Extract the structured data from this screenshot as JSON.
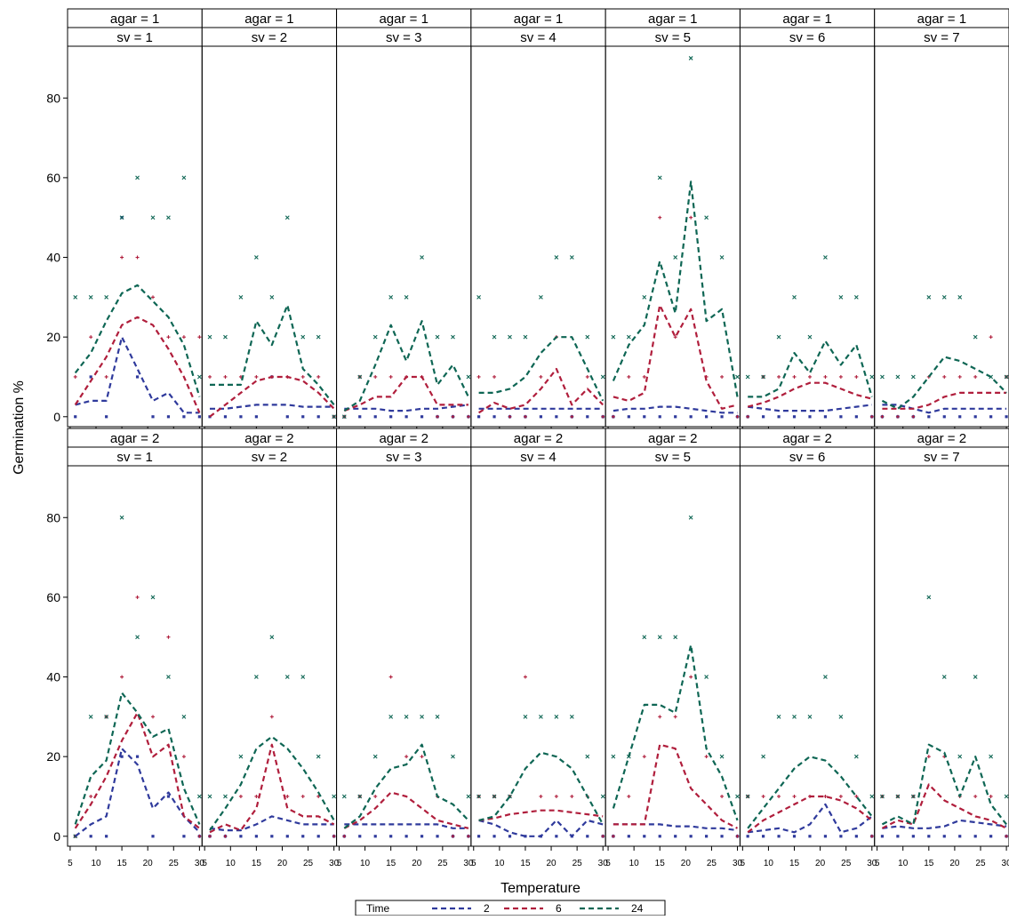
{
  "chart_data": {
    "type": "line",
    "xlabel": "Temperature",
    "ylabel": "Germination %",
    "x_ticks": [
      5,
      10,
      15,
      20,
      25,
      30
    ],
    "y_ticks": [
      0,
      20,
      40,
      60,
      80
    ],
    "xlim": [
      4.5,
      30.5
    ],
    "ylim": [
      -2.5,
      93
    ],
    "grid": false,
    "legend": {
      "title": "Time",
      "position": "bottom-center",
      "entries": [
        {
          "label": "2",
          "color": "#2f3a9c"
        },
        {
          "label": "6",
          "color": "#b01e3c"
        },
        {
          "label": "24",
          "color": "#0e6654"
        }
      ]
    },
    "x": [
      6,
      9,
      12,
      15,
      18,
      21,
      24,
      27,
      30
    ],
    "panels": [
      {
        "agar": "agar = 1",
        "sv": "sv = 1",
        "lines": {
          "2": [
            3,
            4,
            4,
            20,
            12,
            4,
            6,
            1,
            1
          ],
          "6": [
            3,
            9,
            15,
            23,
            25,
            23,
            17,
            10,
            1
          ],
          "24": [
            11,
            16,
            24,
            31,
            33,
            29,
            25,
            18,
            5
          ]
        },
        "points": {
          "2": [
            0,
            10,
            0,
            50,
            10,
            0,
            0,
            0,
            0
          ],
          "6": [
            10,
            20,
            10,
            40,
            40,
            30,
            20,
            20,
            20
          ],
          "24": [
            30,
            30,
            30,
            50,
            60,
            50,
            50,
            60,
            10
          ]
        }
      },
      {
        "agar": "agar = 1",
        "sv": "sv = 2",
        "lines": {
          "2": [
            2,
            2,
            2.5,
            3,
            3,
            3,
            2.5,
            2.5,
            2.5
          ],
          "6": [
            0,
            3,
            6,
            9,
            10,
            10,
            9,
            6,
            2
          ],
          "24": [
            8,
            8,
            8,
            24,
            18,
            28,
            12,
            8,
            3
          ]
        },
        "points": {
          "2": [
            0,
            0,
            0,
            0,
            10,
            0,
            0,
            0,
            0
          ],
          "6": [
            10,
            10,
            10,
            10,
            10,
            10,
            10,
            10,
            0
          ],
          "24": [
            20,
            20,
            30,
            40,
            30,
            50,
            20,
            20,
            0
          ]
        }
      },
      {
        "agar": "agar = 1",
        "sv": "sv = 3",
        "lines": {
          "2": [
            2,
            2,
            2,
            1.5,
            1.5,
            2,
            2,
            2.5,
            3
          ],
          "6": [
            1.5,
            3,
            5,
            5,
            10,
            10,
            3,
            3,
            3
          ],
          "24": [
            1.5,
            4,
            13,
            23,
            14,
            24,
            8,
            13,
            5
          ]
        },
        "points": {
          "2": [
            0,
            0,
            0,
            0,
            0,
            0,
            0,
            0,
            0
          ],
          "6": [
            0,
            10,
            10,
            10,
            10,
            10,
            0,
            0,
            0
          ],
          "24": [
            0,
            10,
            20,
            30,
            30,
            40,
            20,
            20,
            10
          ]
        }
      },
      {
        "agar": "agar = 1",
        "sv": "sv = 4",
        "lines": {
          "2": [
            2,
            2,
            2,
            2,
            2,
            2,
            2,
            2,
            2
          ],
          "6": [
            1,
            3.5,
            2,
            3,
            7,
            12,
            3,
            7,
            3
          ],
          "24": [
            6,
            6,
            7,
            10,
            16,
            20,
            20,
            12,
            4
          ]
        },
        "points": {
          "2": [
            0,
            0,
            0,
            0,
            0,
            0,
            0,
            0,
            0
          ],
          "6": [
            10,
            10,
            0,
            0,
            10,
            20,
            0,
            10,
            0
          ],
          "24": [
            30,
            20,
            20,
            20,
            30,
            40,
            40,
            20,
            10
          ]
        }
      },
      {
        "agar": "agar = 1",
        "sv": "sv = 5",
        "lines": {
          "2": [
            1.5,
            2,
            2,
            2.5,
            2.5,
            2,
            1.5,
            1,
            1
          ],
          "6": [
            5,
            4,
            6,
            28,
            20,
            27,
            9,
            2,
            3
          ],
          "24": [
            9,
            18,
            23,
            39,
            26,
            59,
            24,
            27,
            5
          ]
        },
        "points": {
          "2": [
            0,
            0,
            0,
            0,
            0,
            0,
            0,
            0,
            0
          ],
          "6": [
            0,
            10,
            10,
            50,
            20,
            50,
            10,
            10,
            0
          ],
          "24": [
            20,
            20,
            30,
            60,
            40,
            90,
            50,
            40,
            10
          ]
        }
      },
      {
        "agar": "agar = 1",
        "sv": "sv = 6",
        "lines": {
          "2": [
            2.5,
            2,
            1.5,
            1.5,
            1.5,
            1.5,
            2,
            2.5,
            3
          ],
          "6": [
            2.5,
            3.5,
            5,
            7,
            8.5,
            8.5,
            7,
            5.5,
            4.5
          ],
          "24": [
            5,
            5,
            7,
            16,
            11,
            19,
            13,
            18,
            5
          ]
        },
        "points": {
          "2": [
            0,
            0,
            0,
            0,
            0,
            0,
            0,
            0,
            0
          ],
          "6": [
            0,
            10,
            10,
            10,
            10,
            10,
            10,
            10,
            0
          ],
          "24": [
            10,
            10,
            20,
            30,
            20,
            40,
            30,
            30,
            10
          ]
        }
      },
      {
        "agar": "agar = 1",
        "sv": "sv = 7",
        "lines": {
          "2": [
            3,
            3,
            2,
            1,
            2,
            2,
            2,
            2,
            2
          ],
          "6": [
            2,
            2,
            2,
            3,
            5,
            6,
            6,
            6,
            6
          ],
          "24": [
            4,
            2,
            5,
            10,
            15,
            14,
            12,
            10,
            6
          ]
        },
        "points": {
          "2": [
            0,
            0,
            0,
            0,
            0,
            0,
            0,
            0,
            0
          ],
          "6": [
            0,
            0,
            0,
            10,
            10,
            10,
            10,
            20,
            10
          ],
          "24": [
            10,
            10,
            10,
            30,
            30,
            30,
            20,
            10,
            10
          ]
        }
      },
      {
        "agar": "agar = 2",
        "sv": "sv = 1",
        "lines": {
          "2": [
            0,
            3,
            5,
            22,
            18,
            7,
            11,
            5,
            1
          ],
          "6": [
            2,
            8,
            15,
            24,
            31,
            20,
            23,
            5,
            2
          ],
          "24": [
            3,
            15,
            19,
            36,
            31,
            25,
            27,
            12,
            3
          ]
        },
        "points": {
          "2": [
            0,
            0,
            0,
            20,
            20,
            0,
            10,
            0,
            0
          ],
          "6": [
            0,
            10,
            30,
            40,
            60,
            30,
            50,
            20,
            0
          ],
          "24": [
            0,
            30,
            30,
            80,
            50,
            60,
            40,
            30,
            10
          ]
        }
      },
      {
        "agar": "agar = 2",
        "sv": "sv = 2",
        "lines": {
          "2": [
            2,
            1.5,
            1.5,
            3,
            5,
            4,
            3,
            3,
            3
          ],
          "6": [
            1,
            3,
            1.5,
            7,
            23,
            7,
            5,
            5,
            3
          ],
          "24": [
            1.5,
            7,
            13,
            22,
            25,
            22,
            17,
            11,
            4
          ]
        },
        "points": {
          "2": [
            0,
            0,
            0,
            0,
            0,
            0,
            0,
            0,
            0
          ],
          "6": [
            0,
            0,
            10,
            10,
            30,
            10,
            10,
            10,
            0
          ],
          "24": [
            10,
            10,
            20,
            40,
            50,
            40,
            40,
            20,
            10
          ]
        }
      },
      {
        "agar": "agar = 2",
        "sv": "sv = 3",
        "lines": {
          "2": [
            3,
            3,
            3,
            3,
            3,
            3,
            3,
            2,
            2
          ],
          "6": [
            2,
            4,
            7,
            11,
            10,
            7,
            4,
            3,
            2
          ],
          "24": [
            2,
            5,
            12,
            17,
            18,
            23,
            10,
            8,
            4
          ]
        },
        "points": {
          "2": [
            0,
            0,
            0,
            0,
            0,
            0,
            0,
            0,
            0
          ],
          "6": [
            0,
            10,
            10,
            40,
            20,
            20,
            10,
            0,
            0
          ],
          "24": [
            10,
            10,
            20,
            30,
            30,
            30,
            30,
            20,
            10
          ]
        }
      },
      {
        "agar": "agar = 2",
        "sv": "sv = 4",
        "lines": {
          "2": [
            4,
            3,
            1,
            0,
            0,
            4,
            0,
            4,
            3
          ],
          "6": [
            4,
            4.5,
            5.5,
            6,
            6.5,
            6.5,
            6,
            5.5,
            5
          ],
          "24": [
            4,
            5,
            10,
            17,
            21,
            20,
            17,
            10,
            3
          ]
        },
        "points": {
          "2": [
            0,
            0,
            0,
            0,
            0,
            0,
            0,
            0,
            0
          ],
          "6": [
            10,
            10,
            10,
            40,
            10,
            10,
            10,
            10,
            0
          ],
          "24": [
            10,
            10,
            10,
            30,
            30,
            30,
            30,
            20,
            10
          ]
        }
      },
      {
        "agar": "agar = 2",
        "sv": "sv = 5",
        "lines": {
          "2": [
            3,
            3,
            3,
            3,
            2.5,
            2.5,
            2,
            2,
            1.5
          ],
          "6": [
            3,
            3,
            3,
            23,
            22,
            12,
            8,
            4,
            2
          ],
          "24": [
            7,
            20,
            33,
            33,
            31,
            48,
            22,
            15,
            4
          ]
        },
        "points": {
          "2": [
            0,
            0,
            0,
            0,
            0,
            0,
            0,
            0,
            0
          ],
          "6": [
            0,
            10,
            20,
            30,
            30,
            40,
            20,
            10,
            0
          ],
          "24": [
            20,
            20,
            50,
            50,
            50,
            80,
            40,
            20,
            10
          ]
        }
      },
      {
        "agar": "agar = 2",
        "sv": "sv = 6",
        "lines": {
          "2": [
            1,
            1.5,
            2,
            1,
            3,
            8,
            1,
            2,
            5
          ],
          "6": [
            1,
            4,
            6,
            8,
            10,
            10,
            9,
            7,
            4
          ],
          "24": [
            2,
            7,
            12,
            17,
            20,
            19,
            15,
            10,
            5
          ]
        },
        "points": {
          "2": [
            0,
            0,
            0,
            0,
            0,
            0,
            0,
            0,
            0
          ],
          "6": [
            10,
            10,
            10,
            10,
            10,
            10,
            10,
            10,
            0
          ],
          "24": [
            10,
            20,
            30,
            30,
            30,
            40,
            30,
            20,
            10
          ]
        }
      },
      {
        "agar": "agar = 2",
        "sv": "sv = 7",
        "lines": {
          "2": [
            2,
            2.5,
            2,
            2,
            2.5,
            4,
            3.5,
            3,
            2.5
          ],
          "6": [
            2,
            4,
            3,
            13,
            9,
            7,
            5,
            4,
            2
          ],
          "24": [
            3,
            5,
            3,
            23,
            21,
            10,
            20,
            8,
            3
          ]
        },
        "points": {
          "2": [
            0,
            0,
            0,
            0,
            0,
            0,
            0,
            0,
            0
          ],
          "6": [
            10,
            10,
            10,
            20,
            20,
            10,
            10,
            10,
            0
          ],
          "24": [
            10,
            10,
            10,
            60,
            40,
            20,
            40,
            20,
            10
          ]
        }
      }
    ]
  }
}
